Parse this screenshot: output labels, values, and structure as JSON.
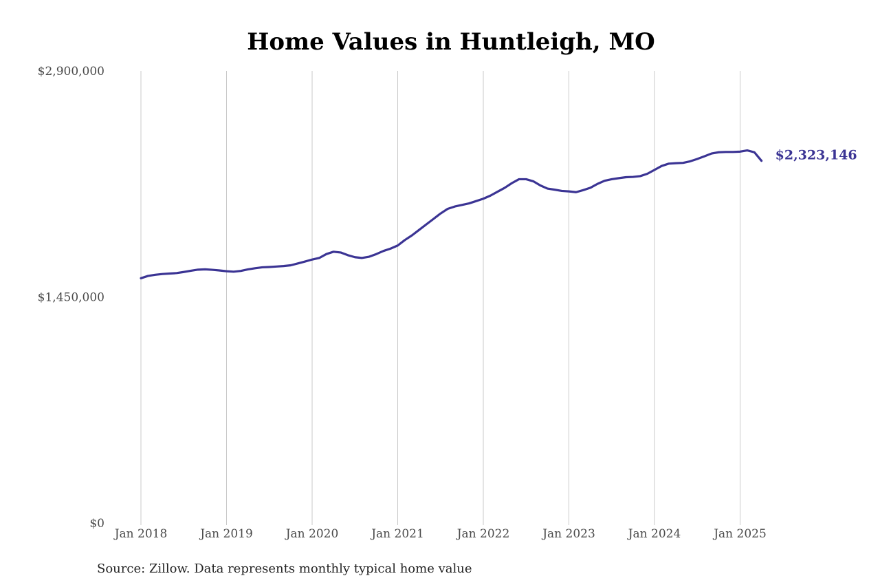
{
  "chart_data": {
    "type": "line",
    "title": "Home Values in Huntleigh, MO",
    "xlabel": "",
    "ylabel": "",
    "ylim": [
      0,
      2900000
    ],
    "xlim": [
      "2018-01",
      "2025-04"
    ],
    "yticks": [
      0,
      1450000,
      2900000
    ],
    "ytick_labels": [
      "$0",
      "$1,450,000",
      "$2,900,000"
    ],
    "xtick_labels": [
      "Jan 2018",
      "Jan 2019",
      "Jan 2020",
      "Jan 2021",
      "Jan 2022",
      "Jan 2023",
      "Jan 2024",
      "Jan 2025"
    ],
    "grid": "vertical",
    "line_color": "#3b3494",
    "end_label": "$2,323,146",
    "series": [
      {
        "x": [
          "2018-01",
          "2018-02",
          "2018-03",
          "2018-04",
          "2018-05",
          "2018-06",
          "2018-07",
          "2018-08",
          "2018-09",
          "2018-10",
          "2018-11",
          "2018-12",
          "2019-01",
          "2019-02",
          "2019-03",
          "2019-04",
          "2019-05",
          "2019-06",
          "2019-07",
          "2019-08",
          "2019-09",
          "2019-10",
          "2019-11",
          "2019-12",
          "2020-01",
          "2020-02",
          "2020-03",
          "2020-04",
          "2020-05",
          "2020-06",
          "2020-07",
          "2020-08",
          "2020-09",
          "2020-10",
          "2020-11",
          "2020-12",
          "2021-01",
          "2021-02",
          "2021-03",
          "2021-04",
          "2021-05",
          "2021-06",
          "2021-07",
          "2021-08",
          "2021-09",
          "2021-10",
          "2021-11",
          "2021-12",
          "2022-01",
          "2022-02",
          "2022-03",
          "2022-04",
          "2022-05",
          "2022-06",
          "2022-07",
          "2022-08",
          "2022-09",
          "2022-10",
          "2022-11",
          "2022-12",
          "2023-01",
          "2023-02",
          "2023-03",
          "2023-04",
          "2023-05",
          "2023-06",
          "2023-07",
          "2023-08",
          "2023-09",
          "2023-10",
          "2023-11",
          "2023-12",
          "2024-01",
          "2024-02",
          "2024-03",
          "2024-04",
          "2024-05",
          "2024-06",
          "2024-07",
          "2024-08",
          "2024-09",
          "2024-10",
          "2024-11",
          "2024-12",
          "2025-01",
          "2025-02",
          "2025-03",
          "2025-04"
        ],
        "values": [
          1570000,
          1585000,
          1592000,
          1597000,
          1600000,
          1603000,
          1610000,
          1618000,
          1625000,
          1627000,
          1624000,
          1620000,
          1615000,
          1612000,
          1617000,
          1627000,
          1634000,
          1640000,
          1642000,
          1645000,
          1648000,
          1653000,
          1665000,
          1677000,
          1690000,
          1700000,
          1725000,
          1740000,
          1735000,
          1718000,
          1705000,
          1700000,
          1708000,
          1725000,
          1745000,
          1760000,
          1780000,
          1815000,
          1845000,
          1880000,
          1915000,
          1950000,
          1985000,
          2015000,
          2030000,
          2040000,
          2050000,
          2065000,
          2080000,
          2100000,
          2125000,
          2150000,
          2180000,
          2205000,
          2205000,
          2192000,
          2165000,
          2145000,
          2138000,
          2130000,
          2127000,
          2122000,
          2135000,
          2150000,
          2175000,
          2195000,
          2205000,
          2212000,
          2218000,
          2220000,
          2225000,
          2240000,
          2265000,
          2290000,
          2305000,
          2308000,
          2310000,
          2320000,
          2335000,
          2352000,
          2370000,
          2378000,
          2380000,
          2380000,
          2382000,
          2390000,
          2378000,
          2323146
        ]
      }
    ]
  },
  "footer": {
    "source": "Source: Zillow. Data represents monthly typical home value"
  }
}
